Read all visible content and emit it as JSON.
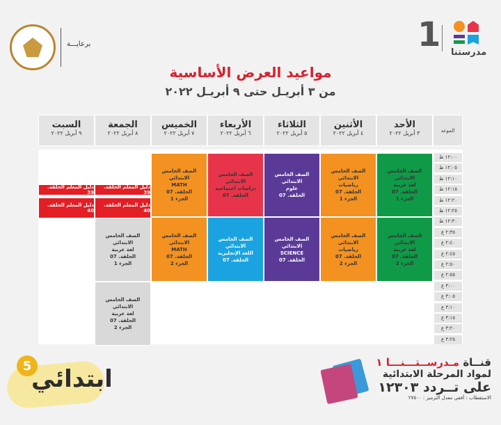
{
  "header": {
    "channel_number": "1",
    "brand": "مدرستنا",
    "sponsor": "برعايـــة",
    "seal_text": "MINISTRY OF EDUCATION AND TECHNICAL EDUCATION"
  },
  "title": "مواعيد العرض الأساسية",
  "subtitle": "من ٣ أبريـل حتى ٩ أبريـل ٢٠٢٢",
  "time_header": "الموعد",
  "days": [
    {
      "name": "الأحد",
      "date": "٣ أبريل ٢٠٢٢"
    },
    {
      "name": "الأثنين",
      "date": "٤ أبريل ٢٠٢٢"
    },
    {
      "name": "الثلاثاء",
      "date": "٥ أبريل ٢٠٢٢"
    },
    {
      "name": "الأربعاء",
      "date": "٦ أبريل ٢٠٢٢"
    },
    {
      "name": "الخميس",
      "date": "٧ أبريل ٢٠٢٢"
    },
    {
      "name": "الجمعة",
      "date": "٨ أبريل ٢٠٢٢"
    },
    {
      "name": "السبت",
      "date": "٩ أبريل ٢٠٢٢"
    }
  ],
  "times": [
    "١٢:٠٠ ظ",
    "١٢:٠٥ ظ",
    "١٢:١٠ ظ",
    "١٢:١٥ ظ",
    "١٢:٢٠ ظ",
    "١٢:٢٥ ظ",
    "١٢:٣٠ ظ",
    "٢:٣٥ ع",
    "٢:٤٠ ع",
    "٢:٤٥ ع",
    "٢:٥٠ ع",
    "٢:٥٥ ع",
    "٣:٠٠ ع",
    "٣:٠٥ ع",
    "٣:١٠ ع",
    "٣:١٥ ع",
    "٣:٢٠ ع",
    "٣:٢٥ ع"
  ],
  "blocks": [
    {
      "lines": [
        "الصف الخامس الابتدائي",
        "لغة عربية",
        "الحلقة. 07",
        "الجزء 1"
      ],
      "color": "#0f9a48"
    },
    {
      "lines": [
        "الصف الخامس الابتدائي",
        "رياضيات",
        "الحلقة. 07",
        "الجزء 1"
      ],
      "color": "#f39221"
    },
    {
      "lines": [
        "الصف الخامس الابتدائي",
        "علوم",
        "الحلقة. 07"
      ],
      "color": "#5b3a97"
    },
    {
      "lines": [
        "الصف الخامس الابتدائي",
        "دراسات اجتماعية",
        "الحلقة. 07"
      ],
      "color": "#e8344a"
    },
    {
      "lines": [
        "الصف الخامس الابتدائي",
        "MATH",
        "الحلقة. 07",
        "الجزء 1"
      ],
      "color": "#f39221"
    },
    {
      "lines": [
        "الصف الخامس الابتدائي",
        "لغة عربية",
        "الحلقة. 07",
        "الجزء 2"
      ],
      "color": "#0f9a48"
    },
    {
      "lines": [
        "الصف الخامس الابتدائي",
        "رياضيات",
        "الحلقة. 07",
        "الجزء 2"
      ],
      "color": "#f39221"
    },
    {
      "lines": [
        "الصف الخامس الابتدائي",
        "SCIENCE",
        "الحلقة. 07"
      ],
      "color": "#5b3a97"
    },
    {
      "lines": [
        "الصف الخامس الابتدائي",
        "اللغة الإنجليزية",
        "الحلقة. 07"
      ],
      "color": "#1aa3e0"
    },
    {
      "lines": [
        "الصف الخامس الابتدائي",
        "MATH",
        "الحلقة. 07",
        "الجزء 2"
      ],
      "color": "#f39221"
    },
    {
      "lines": [
        "الصف الخامس الابتدائي",
        "لغة عربية",
        "الحلقة. 07",
        "الجزء 1"
      ],
      "color": "#d9d9d9"
    },
    {
      "lines": [
        "الصف الخامس الابتدائي",
        "لغة عربية",
        "الحلقة. 07",
        "الجزء 2"
      ],
      "color": "#d9d9d9"
    }
  ],
  "teacher_guides": [
    "دليل المعلم الحلقة. 39",
    "دليل المعلم الحلقة. 39",
    "دليل المعلم الحلقة. 40",
    "دليل المعلم الحلقة. 40"
  ],
  "footer": {
    "badge_text": "ابتدائي",
    "badge_number": "5",
    "channel_line_prefix": "قنــاة",
    "channel_line_name": "مـدرســتـــنـــا ١",
    "line2": "لمواد المرحلة الابتدائية",
    "line3": "على تــردد ١٢٣٠٣",
    "line4": "الاستقطاب : أفقي معدل الترميز : ٢٧٥٠٠"
  }
}
